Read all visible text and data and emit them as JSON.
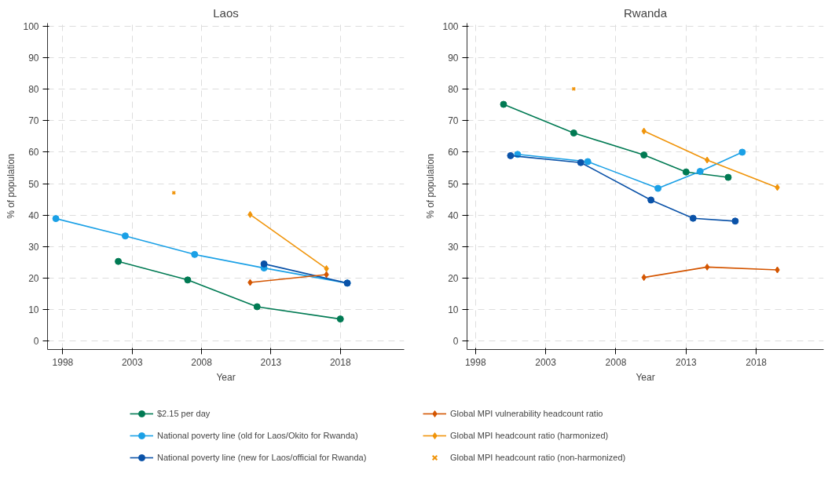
{
  "chart_data": [
    {
      "type": "line",
      "title": "Laos",
      "xlabel": "Year",
      "ylabel": "% of population",
      "xlim": [
        1996.9,
        2022.6
      ],
      "ylim": [
        -2.7,
        101
      ],
      "xticks": [
        1998,
        2003,
        2008,
        2013,
        2018
      ],
      "yticks": [
        0,
        10,
        20,
        30,
        40,
        50,
        60,
        70,
        80,
        90,
        100
      ],
      "grid": true,
      "legend": "bottom",
      "series": [
        {
          "name": "$2.15 per day",
          "color": "#007a53",
          "marker": "circle",
          "x": [
            2002,
            2007,
            2012,
            2018
          ],
          "values": [
            25.3,
            19.4,
            10.9,
            7.0
          ]
        },
        {
          "name": "National poverty line (old for Laos/Okito for Rwanda)",
          "color": "#1aa0e6",
          "marker": "circle",
          "x": [
            1997.5,
            2002.5,
            2007.5,
            2012.5,
            2018.5
          ],
          "values": [
            38.9,
            33.4,
            27.5,
            23.2,
            18.4
          ]
        },
        {
          "name": "National poverty line (new for Laos/official for Rwanda)",
          "color": "#0a52a8",
          "marker": "circle",
          "x": [
            2012.5,
            2018.5
          ],
          "values": [
            24.5,
            18.4
          ]
        },
        {
          "name": "Global MPI vulnerability headcount ratio",
          "color": "#d45500",
          "marker": "diamond",
          "x": [
            2011.5,
            2017
          ],
          "values": [
            18.6,
            21.1
          ]
        },
        {
          "name": "Global MPI headcount ratio (harmonized)",
          "color": "#f0940a",
          "marker": "diamond",
          "x": [
            2011.5,
            2017
          ],
          "values": [
            40.2,
            23.0
          ]
        },
        {
          "name": "Global MPI headcount ratio (non-harmonized)",
          "type": "scatter",
          "color": "#f0940a",
          "marker": "cross",
          "x": [
            2006
          ],
          "values": [
            47.1
          ]
        }
      ]
    },
    {
      "type": "line",
      "title": "Rwanda",
      "xlabel": "Year",
      "ylabel": "% of population",
      "xlim": [
        1997.4,
        2022.8
      ],
      "ylim": [
        -2.7,
        101
      ],
      "xticks": [
        1998,
        2003,
        2008,
        2013,
        2018
      ],
      "yticks": [
        0,
        10,
        20,
        30,
        40,
        50,
        60,
        70,
        80,
        90,
        100
      ],
      "grid": true,
      "series": [
        {
          "color": "#007a53",
          "marker": "circle",
          "x": [
            2000,
            2005,
            2010,
            2013,
            2016
          ],
          "values": [
            75.2,
            66.1,
            59.1,
            53.7,
            52.0
          ]
        },
        {
          "color": "#1aa0e6",
          "marker": "circle",
          "x": [
            2001,
            2006,
            2011,
            2014,
            2017
          ],
          "values": [
            59.3,
            57.0,
            48.5,
            53.9,
            60.0
          ]
        },
        {
          "color": "#0a52a8",
          "marker": "circle",
          "x": [
            2000.5,
            2005.5,
            2010.5,
            2013.5,
            2016.5
          ],
          "values": [
            58.9,
            56.7,
            44.8,
            39.0,
            38.1
          ]
        },
        {
          "color": "#d45500",
          "marker": "diamond",
          "x": [
            2010,
            2014.5,
            2019.5
          ],
          "values": [
            20.2,
            23.5,
            22.6
          ]
        },
        {
          "color": "#f0940a",
          "marker": "diamond",
          "x": [
            2010,
            2014.5,
            2019.5
          ],
          "values": [
            66.7,
            57.5,
            48.8
          ]
        },
        {
          "type": "scatter",
          "color": "#f0940a",
          "marker": "cross",
          "x": [
            2005
          ],
          "values": [
            80.1
          ]
        }
      ]
    }
  ]
}
